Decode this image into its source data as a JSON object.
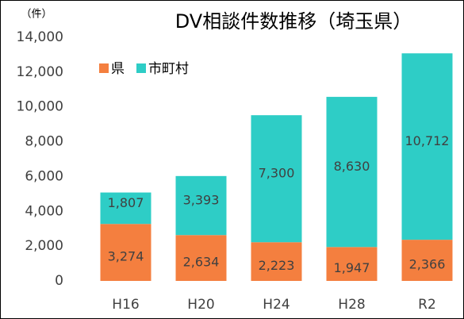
{
  "chart_data": {
    "type": "stacked_bar",
    "title": "DV相談件数推移（埼玉県）",
    "y_unit": "（件）",
    "categories": [
      "H16",
      "H20",
      "H24",
      "H28",
      "R2"
    ],
    "series": [
      {
        "name": "県",
        "color": "#f47f3f",
        "values": [
          3274,
          2634,
          2223,
          1947,
          2366
        ],
        "value_labels": [
          "3,274",
          "2,634",
          "2,223",
          "1,947",
          "2,366"
        ]
      },
      {
        "name": "市町村",
        "color": "#2ecdc6",
        "values": [
          1807,
          3393,
          7300,
          8630,
          10712
        ],
        "value_labels": [
          "1,807",
          "3,393",
          "7,300",
          "8,630",
          "10,712"
        ]
      }
    ],
    "ylim": [
      0,
      14000
    ],
    "yticks": [
      {
        "value": 0,
        "label": "0"
      },
      {
        "value": 2000,
        "label": "2,000"
      },
      {
        "value": 4000,
        "label": "4,000"
      },
      {
        "value": 6000,
        "label": "6,000"
      },
      {
        "value": 8000,
        "label": "8,000"
      },
      {
        "value": 10000,
        "label": "10,000"
      },
      {
        "value": 12000,
        "label": "12,000"
      },
      {
        "value": 14000,
        "label": "14,000"
      }
    ],
    "legend": "top-left",
    "grid": false
  }
}
